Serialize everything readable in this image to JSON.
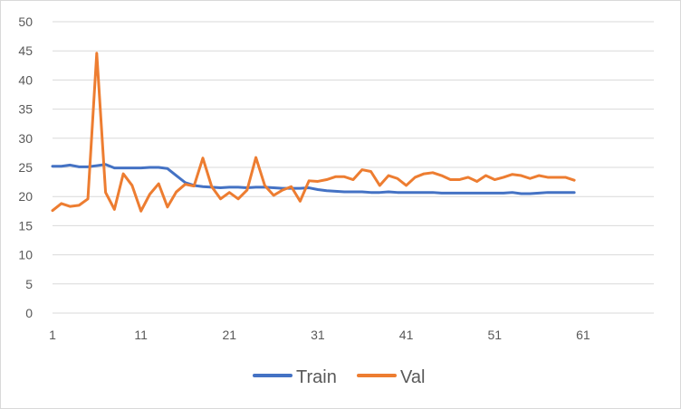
{
  "chart_data": {
    "type": "line",
    "title": "",
    "xlabel": "",
    "ylabel": "",
    "x_tick_labels": [
      "1",
      "11",
      "21",
      "31",
      "41",
      "51",
      "61"
    ],
    "y_tick_labels": [
      "0",
      "5",
      "10",
      "15",
      "20",
      "25",
      "30",
      "35",
      "40",
      "45",
      "50"
    ],
    "xlim": [
      1,
      69
    ],
    "ylim": [
      0,
      50
    ],
    "grid": true,
    "legend_position": "bottom",
    "x": [
      1,
      2,
      3,
      4,
      5,
      6,
      7,
      8,
      9,
      10,
      11,
      12,
      13,
      14,
      15,
      16,
      17,
      18,
      19,
      20,
      21,
      22,
      23,
      24,
      25,
      26,
      27,
      28,
      29,
      30,
      31,
      32,
      33,
      34,
      35,
      36,
      37,
      38,
      39,
      40,
      41,
      42,
      43,
      44,
      45,
      46,
      47,
      48,
      49,
      50,
      51,
      52,
      53,
      54,
      55,
      56,
      57,
      58,
      59,
      60
    ],
    "series": [
      {
        "name": "Train",
        "color": "#4472c4",
        "values": [
          25.2,
          25.2,
          25.4,
          25.1,
          25.1,
          25.3,
          25.5,
          24.9,
          24.9,
          24.9,
          24.9,
          25.0,
          25.0,
          24.8,
          23.6,
          22.4,
          21.9,
          21.7,
          21.6,
          21.5,
          21.6,
          21.6,
          21.5,
          21.6,
          21.6,
          21.5,
          21.4,
          21.4,
          21.4,
          21.5,
          21.2,
          21.0,
          20.9,
          20.8,
          20.8,
          20.8,
          20.7,
          20.7,
          20.8,
          20.7,
          20.7,
          20.7,
          20.7,
          20.7,
          20.6,
          20.6,
          20.6,
          20.6,
          20.6,
          20.6,
          20.6,
          20.6,
          20.7,
          20.5,
          20.5,
          20.6,
          20.7,
          20.7,
          20.7,
          20.7
        ]
      },
      {
        "name": "Val",
        "color": "#ed7d31",
        "values": [
          17.6,
          18.8,
          18.3,
          18.5,
          19.6,
          44.6,
          20.7,
          17.8,
          23.9,
          21.9,
          17.5,
          20.4,
          22.2,
          18.2,
          20.8,
          22.1,
          21.8,
          26.6,
          21.7,
          19.6,
          20.7,
          19.6,
          21.1,
          26.7,
          21.9,
          20.2,
          21.1,
          21.7,
          19.2,
          22.7,
          22.6,
          22.9,
          23.4,
          23.4,
          22.9,
          24.6,
          24.3,
          21.9,
          23.6,
          23.1,
          21.9,
          23.3,
          23.9,
          24.1,
          23.6,
          22.9,
          22.9,
          23.3,
          22.6,
          23.6,
          22.9,
          23.3,
          23.8,
          23.6,
          23.1,
          23.6,
          23.3,
          23.3,
          23.3,
          22.8
        ]
      }
    ]
  }
}
